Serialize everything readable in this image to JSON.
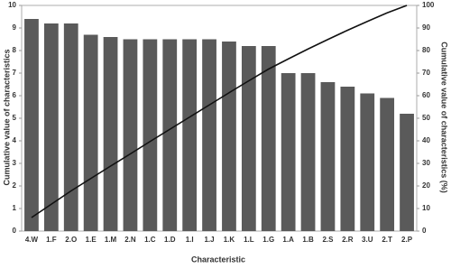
{
  "chart_data": {
    "type": "pareto",
    "x_label": "Characteristic",
    "y_label": "Cumulative value of characteristics",
    "y2_label": "Cumulative value of characteristics (%)",
    "categories": [
      "4.W",
      "1.F",
      "2.O",
      "1.E",
      "1.M",
      "2.N",
      "1.C",
      "1.D",
      "1.I",
      "1.J",
      "1.K",
      "1.L",
      "1.G",
      "1.A",
      "1.B",
      "2.S",
      "2.R",
      "3.U",
      "2.T",
      "2.P"
    ],
    "series": [
      {
        "type": "bar",
        "color": "#5a5a5a",
        "values": [
          9.4,
          9.2,
          9.2,
          8.7,
          8.6,
          8.5,
          8.5,
          8.5,
          8.5,
          8.5,
          8.4,
          8.2,
          8.2,
          7.0,
          7.0,
          6.6,
          6.4,
          6.1,
          5.9,
          5.2
        ]
      },
      {
        "type": "line",
        "axis": "y2",
        "color": "#111111",
        "values": [
          6.0,
          11.9,
          17.8,
          23.3,
          28.8,
          34.2,
          39.7,
          45.1,
          50.5,
          55.9,
          61.3,
          66.6,
          71.8,
          76.3,
          80.7,
          84.9,
          89.0,
          92.9,
          96.7,
          100
        ]
      }
    ],
    "ylim": [
      0,
      10
    ],
    "yticks": [
      0,
      1,
      2,
      3,
      4,
      5,
      6,
      7,
      8,
      9,
      10
    ],
    "y2lim": [
      0,
      100
    ],
    "y2ticks": [
      0,
      10,
      20,
      30,
      40,
      50,
      60,
      70,
      80,
      90,
      100
    ]
  }
}
